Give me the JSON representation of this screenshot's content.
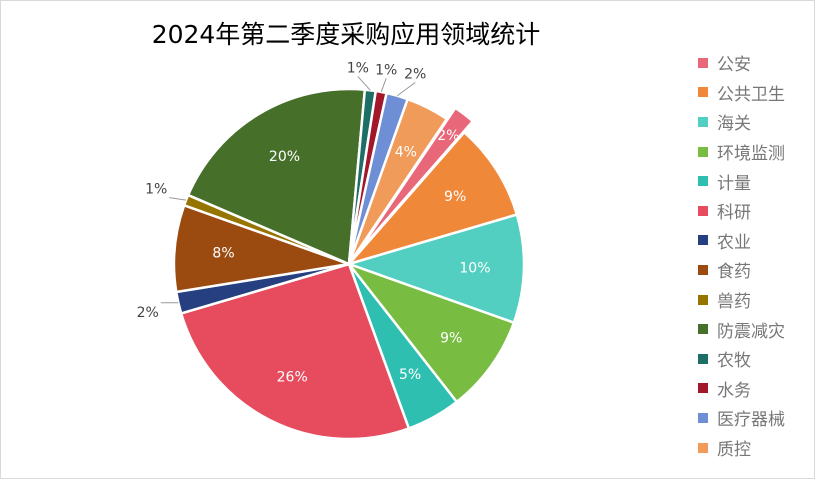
{
  "chart_data": {
    "type": "pie",
    "title": "2024年第二季度采购应用领域统计",
    "start_angle_deg": 34,
    "legend_position": "right",
    "exploded": [
      "公安"
    ],
    "categories": [
      "公安",
      "公共卫生",
      "海关",
      "环境监测",
      "计量",
      "科研",
      "农业",
      "食药",
      "兽药",
      "防震减灾",
      "农牧",
      "水务",
      "医疗器械",
      "质控"
    ],
    "values": [
      2,
      9,
      10,
      9,
      5,
      26,
      2,
      8,
      1,
      20,
      1,
      1,
      2,
      4
    ],
    "labels": [
      "2%",
      "9%",
      "10%",
      "9%",
      "5%",
      "26%",
      "2%",
      "8%",
      "1%",
      "20%",
      "1%",
      "1%",
      "2%",
      "4%"
    ],
    "colors": [
      "#e8687a",
      "#f0883a",
      "#52cfc0",
      "#78bd42",
      "#2fbfb0",
      "#e64c5e",
      "#263f80",
      "#9b4a10",
      "#957400",
      "#46702a",
      "#1d6f66",
      "#a3172b",
      "#6e8fd6",
      "#f19b5a"
    ]
  }
}
